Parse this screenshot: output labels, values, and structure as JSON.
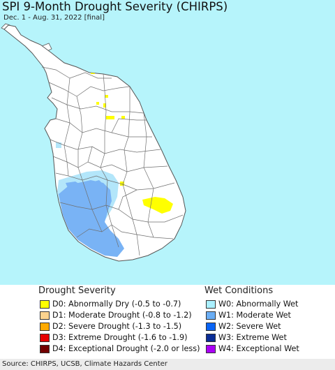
{
  "title": "SPI 9-Month Drought Severity (CHIRPS)",
  "subtitle": "Dec. 1 - Aug. 31, 2022 [final]",
  "colors": {
    "ocean": "#b6f4fb",
    "land": "#ffffff",
    "boundary": "#6f6f6f",
    "D0": "#ffff00",
    "W0": "#b3e6fa",
    "W1": "#79b3f5"
  },
  "legend": {
    "drought_heading": "Drought Severity",
    "wet_heading": "Wet Conditions",
    "drought_items": [
      {
        "code": "D0",
        "label": "D0: Abnormally Dry (-0.5 to -0.7)",
        "color": "#ffff00"
      },
      {
        "code": "D1",
        "label": "D1: Moderate Drought (-0.8 to -1.2)",
        "color": "#fcd38e"
      },
      {
        "code": "D2",
        "label": "D2: Severe Drought (-1.3 to -1.5)",
        "color": "#ffaa00"
      },
      {
        "code": "D3",
        "label": "D3: Extreme Drought (-1.6 to -1.9)",
        "color": "#e60000"
      },
      {
        "code": "D4",
        "label": "D4: Exceptional Drought (-2.0 or less)",
        "color": "#730000"
      }
    ],
    "wet_items": [
      {
        "code": "W0",
        "label": "W0: Abnormally Wet",
        "color": "#aaf0ff"
      },
      {
        "code": "W1",
        "label": "W1: Moderate Wet",
        "color": "#6aaef5"
      },
      {
        "code": "W2",
        "label": "W2: Severe Wet",
        "color": "#0a64f5"
      },
      {
        "code": "W3",
        "label": "W3: Extreme Wet",
        "color": "#0a2d96"
      },
      {
        "code": "W4",
        "label": "W4: Exceptional Wet",
        "color": "#aa00f5"
      }
    ]
  },
  "footer": "Source: CHIRPS, UCSB, Climate Hazards Center"
}
